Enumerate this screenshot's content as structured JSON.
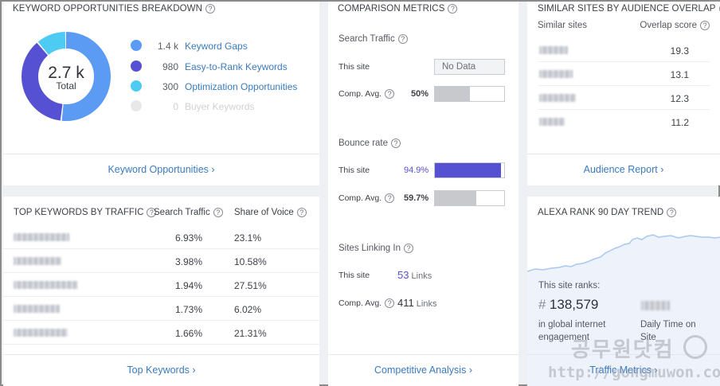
{
  "keyword_breakdown": {
    "title": "Keyword Opportunities Breakdown",
    "total_value": "2.7 k",
    "total_label": "Total",
    "items": [
      {
        "count": "1.4 k",
        "label": "Keyword Gaps",
        "color": "#5b9bf4",
        "fraction": 0.52
      },
      {
        "count": "980",
        "label": "Easy-to-Rank Keywords",
        "color": "#5650d2",
        "fraction": 0.37
      },
      {
        "count": "300",
        "label": "Optimization Opportunities",
        "color": "#4dcbf2",
        "fraction": 0.11
      },
      {
        "count": "0",
        "label": "Buyer Keywords",
        "color": "#e8e8e8",
        "fraction": 0
      }
    ],
    "footer": "Keyword Opportunities"
  },
  "top_keywords": {
    "title": "Top Keywords by Traffic",
    "col_search_traffic": "Search Traffic",
    "col_share_of_voice": "Share of Voice",
    "rows": [
      {
        "search_traffic": "6.93%",
        "share_of_voice": "23.1%"
      },
      {
        "search_traffic": "3.98%",
        "share_of_voice": "10.58%"
      },
      {
        "search_traffic": "1.94%",
        "share_of_voice": "27.51%"
      },
      {
        "search_traffic": "1.73%",
        "share_of_voice": "6.02%"
      },
      {
        "search_traffic": "1.66%",
        "share_of_voice": "21.31%"
      }
    ],
    "footer": "Top Keywords"
  },
  "comparison": {
    "title": "Comparison Metrics",
    "search_traffic": {
      "label": "Search Traffic",
      "this_site": "This site",
      "this_value": "No Data",
      "comp_avg": "Comp. Avg.",
      "comp_value": "50%",
      "comp_fraction": 0.5
    },
    "bounce_rate": {
      "label": "Bounce rate",
      "this_site": "This site",
      "this_value": "94.9%",
      "this_fraction": 0.949,
      "comp_avg": "Comp. Avg.",
      "comp_value": "59.7%",
      "comp_fraction": 0.597
    },
    "sites_linking": {
      "label": "Sites Linking In",
      "this_site": "This site",
      "this_value": "53",
      "this_unit": "Links",
      "comp_avg": "Comp. Avg.",
      "comp_value": "411",
      "comp_unit": "Links"
    },
    "footer": "Competitive Analysis",
    "colors": {
      "this_bar": "#5650d2",
      "comp_bar": "#c8c9cd"
    }
  },
  "similar_sites": {
    "title": "Similar Sites by Audience Overlap",
    "col_sites": "Similar sites",
    "col_overlap": "Overlap score",
    "rows": [
      {
        "overlap": "19.3"
      },
      {
        "overlap": "13.1"
      },
      {
        "overlap": "12.3"
      },
      {
        "overlap": "11.2"
      }
    ],
    "footer": "Audience Report"
  },
  "alexa": {
    "title": "Alexa Rank 90 Day Trend",
    "ranks_label": "This site ranks:",
    "rank_hash": "#",
    "rank_value": "138,579",
    "rank_desc": "in global internet engagement",
    "daily_time_label": "Daily Time on Site",
    "footer": "Traffic Metrics"
  },
  "watermark": {
    "korean": "공무원닷컴",
    "url": "http://gongmuwon.com"
  }
}
